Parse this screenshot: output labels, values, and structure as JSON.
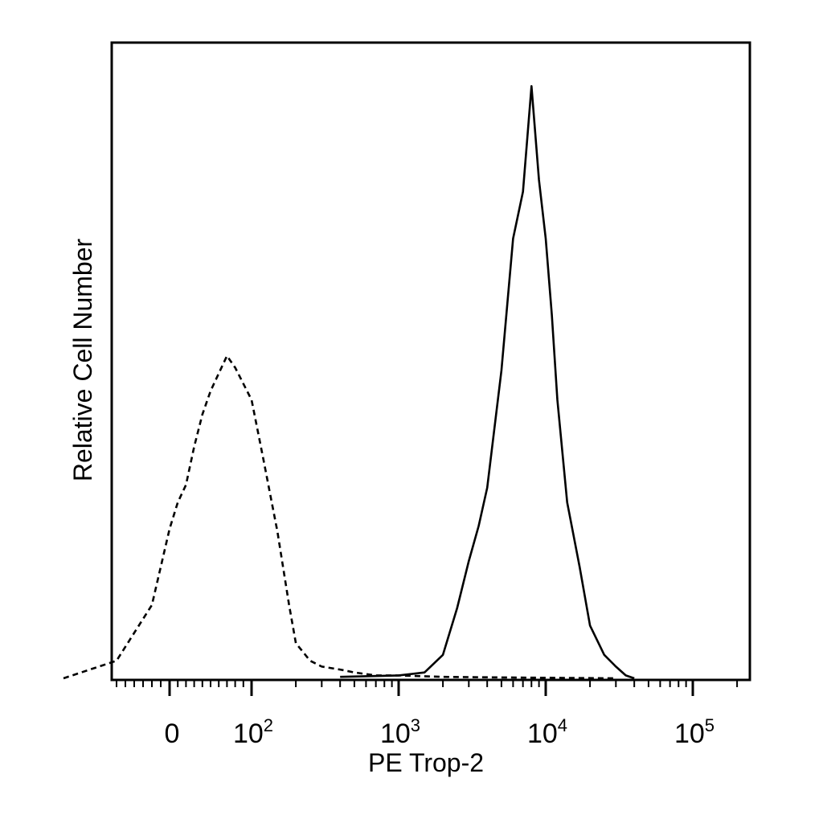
{
  "chart_data": {
    "type": "line",
    "xlabel": "PE Trop-2",
    "ylabel": "Relative Cell Number",
    "x_scale": "logicle (biexponential)",
    "x_range": [
      -120,
      250000
    ],
    "grid": false,
    "x_tick_labels": [
      {
        "value": 0,
        "base": "0",
        "exp": ""
      },
      {
        "value": 100,
        "base": "10",
        "exp": "2"
      },
      {
        "value": 1000,
        "base": "10",
        "exp": "3"
      },
      {
        "value": 10000,
        "base": "10",
        "exp": "4"
      },
      {
        "value": 100000,
        "base": "10",
        "exp": "5"
      }
    ],
    "series": [
      {
        "style": "dashed",
        "x": [
          -120,
          -60,
          -20,
          0,
          10,
          20,
          30,
          40,
          50,
          60,
          70,
          80,
          100,
          120,
          150,
          180,
          200,
          250,
          300,
          400,
          500,
          700,
          1000,
          2000,
          5000,
          10000,
          30000
        ],
        "y": [
          0,
          6,
          25,
          51,
          60,
          66,
          79,
          90,
          98,
          104,
          110,
          106,
          95,
          75,
          50,
          25,
          12,
          6,
          4,
          3,
          2,
          1,
          1,
          0.5,
          0.3,
          0.2,
          0
        ]
      },
      {
        "style": "solid",
        "x": [
          400,
          1000,
          1500,
          2000,
          2500,
          3000,
          3500,
          4000,
          5000,
          6000,
          7000,
          8000,
          9000,
          10000,
          11000,
          12000,
          14000,
          17000,
          20000,
          25000,
          30000,
          35000,
          40000
        ],
        "y": [
          0.5,
          1,
          2,
          8,
          24,
          40,
          52,
          65,
          105,
          150,
          166,
          202,
          170,
          150,
          124,
          95,
          60,
          38,
          18,
          8,
          4,
          1,
          0
        ]
      }
    ]
  }
}
